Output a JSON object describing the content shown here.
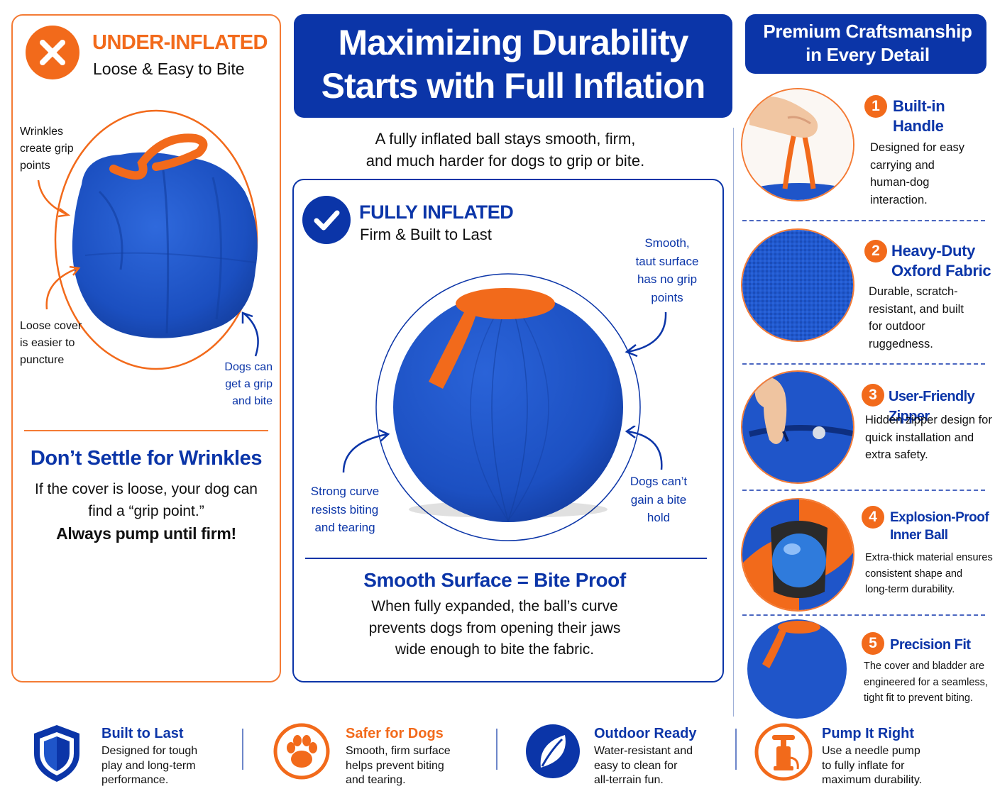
{
  "main_title": {
    "line1": "Maximizing Durability",
    "line2": "Starts with Full Inflation"
  },
  "subtitle": {
    "line1": "A fully inflated ball stays smooth, firm,",
    "line2": "and much harder for dogs to grip or bite."
  },
  "under_inflated": {
    "title": "UNDER-INFLATED",
    "subtitle": "Loose & Easy to Bite",
    "note_wrinkles": [
      "Wrinkles",
      "create grip",
      "points"
    ],
    "note_loose": [
      "Loose cover",
      "is easier to",
      "puncture"
    ],
    "note_dogs": [
      "Dogs can",
      "get a grip",
      "and bite"
    ],
    "dont_settle": "Don’t Settle for Wrinkles",
    "body": [
      "If the cover is loose, your dog can",
      "find a “grip point.”"
    ],
    "pump_firm": "Always pump until firm!"
  },
  "fully_inflated": {
    "title": "FULLY INFLATED",
    "subtitle": "Firm & Built to Last",
    "note_smooth": [
      "Smooth,",
      "taut surface",
      "has no grip",
      "points"
    ],
    "note_curve": [
      "Strong curve",
      "resists biting",
      "and tearing"
    ],
    "note_dogs_cant": [
      "Dogs can’t",
      "gain a bite",
      "hold"
    ],
    "smooth_title": "Smooth Surface = Bite Proof",
    "smooth_body": [
      "When fully expanded, the ball’s curve",
      "prevents dogs from opening their jaws",
      "wide enough to bite the fabric."
    ]
  },
  "premium": {
    "title": [
      "Premium Craftsmanship",
      "in Every Detail"
    ],
    "features": [
      {
        "num": "1",
        "title": [
          "Built-in",
          "Handle"
        ],
        "text": [
          "Designed for easy",
          "carrying and",
          "human-dog",
          "interaction."
        ]
      },
      {
        "num": "2",
        "title": [
          "Heavy-Duty",
          "Oxford Fabric"
        ],
        "text": [
          "Durable, scratch-",
          "resistant, and built",
          "for outdoor",
          "ruggedness."
        ]
      },
      {
        "num": "3",
        "title": [
          "User-Friendly Zipper"
        ],
        "text": [
          "Hidden zipper design for",
          "quick installation and",
          "extra safety."
        ]
      },
      {
        "num": "4",
        "title": [
          "Explosion-Proof",
          "Inner Ball"
        ],
        "text": [
          "Extra-thick material ensures",
          "consistent shape and",
          "long-term durability."
        ]
      },
      {
        "num": "5",
        "title": [
          "Precision Fit"
        ],
        "text": [
          "The cover and bladder are",
          "engineered for a seamless,",
          "tight fit to prevent biting."
        ]
      }
    ]
  },
  "bottom": [
    {
      "icon": "shield-icon",
      "title": "Built to Last",
      "text": [
        "Designed for tough",
        "play and long-term",
        "performance."
      ]
    },
    {
      "icon": "paw-icon",
      "title": "Safer for Dogs",
      "text": [
        "Smooth, firm surface",
        "helps prevent biting",
        "and tearing."
      ]
    },
    {
      "icon": "leaf-icon",
      "title": "Outdoor Ready",
      "text": [
        "Water-resistant and",
        "easy to clean for",
        "all-terrain fun."
      ]
    },
    {
      "icon": "pump-icon",
      "title": "Pump It Right",
      "text": [
        "Use a needle pump",
        "to fully inflate for",
        "maximum durability."
      ]
    }
  ],
  "colors": {
    "navy": "#0b35a8",
    "orange": "#f26a1b",
    "ball_blue": "#1f55c9"
  }
}
